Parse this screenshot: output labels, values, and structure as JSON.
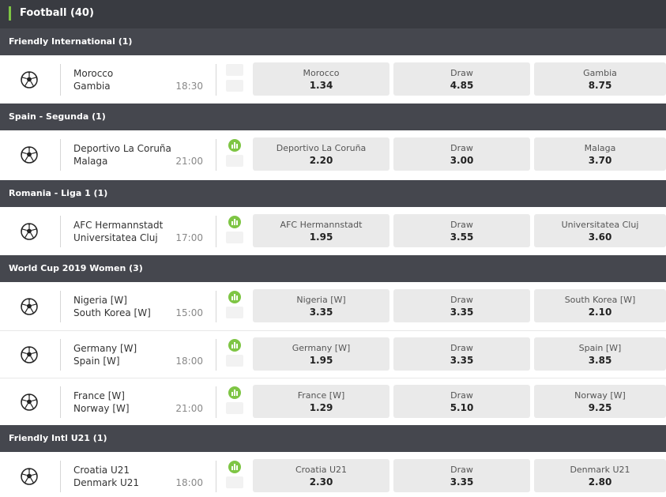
{
  "header": {
    "title": "Football (40)"
  },
  "accent_color": "#7ec544",
  "leagues": [
    {
      "name": "Friendly International  (1)"
    },
    {
      "name": "Spain - Segunda  (1)"
    },
    {
      "name": "Romania - Liga 1  (1)"
    },
    {
      "name": "World Cup 2019 Women  (3)"
    },
    {
      "name": "Friendly Intl U21  (1)"
    }
  ],
  "matches": [
    {
      "home": "Morocco",
      "away": "Gambia",
      "time": "18:30",
      "has_stats": false,
      "odds": [
        {
          "label": "Morocco",
          "value": "1.34"
        },
        {
          "label": "Draw",
          "value": "4.85"
        },
        {
          "label": "Gambia",
          "value": "8.75"
        }
      ]
    },
    {
      "home": "Deportivo La Coruña",
      "away": "Malaga",
      "time": "21:00",
      "has_stats": true,
      "odds": [
        {
          "label": "Deportivo La Coruña",
          "value": "2.20"
        },
        {
          "label": "Draw",
          "value": "3.00"
        },
        {
          "label": "Malaga",
          "value": "3.70"
        }
      ]
    },
    {
      "home": "AFC Hermannstadt",
      "away": "Universitatea Cluj",
      "time": "17:00",
      "has_stats": true,
      "odds": [
        {
          "label": "AFC Hermannstadt",
          "value": "1.95"
        },
        {
          "label": "Draw",
          "value": "3.55"
        },
        {
          "label": "Universitatea Cluj",
          "value": "3.60"
        }
      ]
    },
    {
      "home": "Nigeria [W]",
      "away": "South Korea [W]",
      "time": "15:00",
      "has_stats": true,
      "odds": [
        {
          "label": "Nigeria [W]",
          "value": "3.35"
        },
        {
          "label": "Draw",
          "value": "3.35"
        },
        {
          "label": "South Korea [W]",
          "value": "2.10"
        }
      ]
    },
    {
      "home": "Germany [W]",
      "away": "Spain [W]",
      "time": "18:00",
      "has_stats": true,
      "odds": [
        {
          "label": "Germany [W]",
          "value": "1.95"
        },
        {
          "label": "Draw",
          "value": "3.35"
        },
        {
          "label": "Spain [W]",
          "value": "3.85"
        }
      ]
    },
    {
      "home": "France [W]",
      "away": "Norway [W]",
      "time": "21:00",
      "has_stats": true,
      "odds": [
        {
          "label": "France [W]",
          "value": "1.29"
        },
        {
          "label": "Draw",
          "value": "5.10"
        },
        {
          "label": "Norway [W]",
          "value": "9.25"
        }
      ]
    },
    {
      "home": "Croatia U21",
      "away": "Denmark U21",
      "time": "18:00",
      "has_stats": true,
      "odds": [
        {
          "label": "Croatia U21",
          "value": "2.30"
        },
        {
          "label": "Draw",
          "value": "3.35"
        },
        {
          "label": "Denmark U21",
          "value": "2.80"
        }
      ]
    }
  ]
}
